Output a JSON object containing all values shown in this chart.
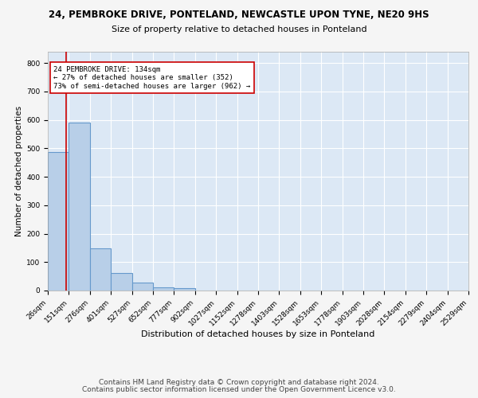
{
  "title_line1": "24, PEMBROKE DRIVE, PONTELAND, NEWCASTLE UPON TYNE, NE20 9HS",
  "title_line2": "Size of property relative to detached houses in Ponteland",
  "xlabel": "Distribution of detached houses by size in Ponteland",
  "ylabel": "Number of detached properties",
  "bin_edges": [
    26,
    151,
    276,
    401,
    527,
    652,
    777,
    902,
    1027,
    1152,
    1278,
    1403,
    1528,
    1653,
    1778,
    1903,
    2028,
    2154,
    2279,
    2404,
    2529
  ],
  "bin_labels": [
    "26sqm",
    "151sqm",
    "276sqm",
    "401sqm",
    "527sqm",
    "652sqm",
    "777sqm",
    "902sqm",
    "1027sqm",
    "1152sqm",
    "1278sqm",
    "1403sqm",
    "1528sqm",
    "1653sqm",
    "1778sqm",
    "1903sqm",
    "2028sqm",
    "2154sqm",
    "2279sqm",
    "2404sqm",
    "2529sqm"
  ],
  "bar_heights": [
    487,
    590,
    148,
    62,
    27,
    10,
    8,
    0,
    0,
    0,
    0,
    0,
    0,
    0,
    0,
    0,
    0,
    0,
    0,
    0
  ],
  "bar_color": "#b8cfe8",
  "bar_edge_color": "#6699cc",
  "bar_edge_width": 0.8,
  "red_line_x": 134,
  "red_line_color": "#cc0000",
  "ylim": [
    0,
    840
  ],
  "yticks": [
    0,
    100,
    200,
    300,
    400,
    500,
    600,
    700,
    800
  ],
  "annotation_text": "24 PEMBROKE DRIVE: 134sqm\n← 27% of detached houses are smaller (352)\n73% of semi-detached houses are larger (962) →",
  "annotation_box_color": "#ffffff",
  "annotation_box_edge": "#cc0000",
  "annotation_fontsize": 6.5,
  "bg_color": "#dce8f5",
  "grid_color": "#ffffff",
  "footer_line1": "Contains HM Land Registry data © Crown copyright and database right 2024.",
  "footer_line2": "Contains public sector information licensed under the Open Government Licence v3.0.",
  "title1_fontsize": 8.5,
  "title2_fontsize": 8,
  "xlabel_fontsize": 8,
  "ylabel_fontsize": 7.5,
  "tick_fontsize": 6.5,
  "footer_fontsize": 6.5,
  "fig_bg_color": "#f5f5f5"
}
